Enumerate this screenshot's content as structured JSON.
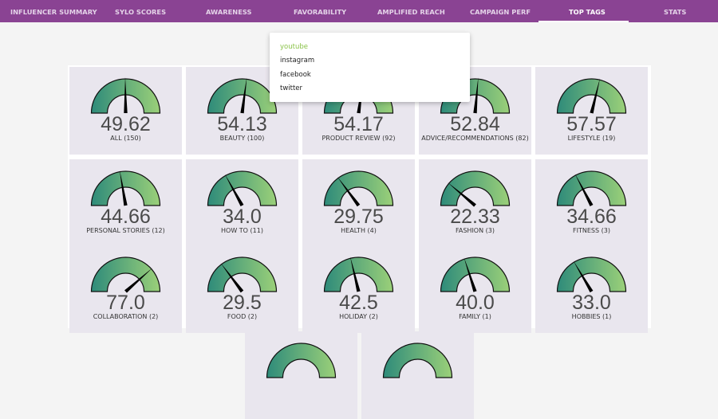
{
  "nav": {
    "tabs": [
      {
        "label": "INFLUENCER SUMMARY",
        "active": false
      },
      {
        "label": "SYLO SCORES",
        "active": false
      },
      {
        "label": "AWARENESS",
        "active": false
      },
      {
        "label": "FAVORABILITY",
        "active": false
      },
      {
        "label": "AMPLIFIED REACH",
        "active": false
      },
      {
        "label": "CAMPAIGN PERF",
        "active": false
      },
      {
        "label": "TOP TAGS",
        "active": true
      },
      {
        "label": "STATS",
        "active": false
      }
    ]
  },
  "dropdown": {
    "items": [
      {
        "label": "youtube",
        "active": true
      },
      {
        "label": "instagram",
        "active": false
      },
      {
        "label": "facebook",
        "active": false
      },
      {
        "label": "twitter",
        "active": false
      }
    ]
  },
  "gauges": [
    {
      "value": "49.62",
      "label": "ALL (150)"
    },
    {
      "value": "54.13",
      "label": "BEAUTY (100)"
    },
    {
      "value": "54.17",
      "label": "PRODUCT REVIEW (92)"
    },
    {
      "value": "52.84",
      "label": "ADVICE/RECOMMENDATIONS (82)"
    },
    {
      "value": "57.57",
      "label": "LIFESTYLE (19)"
    },
    {
      "value": "44.66",
      "label": "PERSONAL STORIES (12)"
    },
    {
      "value": "34.0",
      "label": "HOW TO (11)"
    },
    {
      "value": "29.75",
      "label": "HEALTH (4)"
    },
    {
      "value": "22.33",
      "label": "FASHION (3)"
    },
    {
      "value": "34.66",
      "label": "FITNESS (3)"
    },
    {
      "value": "77.0",
      "label": "COLLABORATION (2)"
    },
    {
      "value": "29.5",
      "label": "FOOD (2)"
    },
    {
      "value": "42.5",
      "label": "HOLIDAY (2)"
    },
    {
      "value": "40.0",
      "label": "FAMILY (1)"
    },
    {
      "value": "33.0",
      "label": "HOBBIES (1)"
    },
    {
      "value": "",
      "label": ""
    },
    {
      "value": "",
      "label": ""
    }
  ],
  "gauge_scale": {
    "min": 0,
    "max": 100
  },
  "colors": {
    "nav_bg": "#8a4393",
    "gauge_start": "#2e8b7a",
    "gauge_end": "#9bd079",
    "card_bg": "#e9e6ee",
    "dropdown_active": "#8bc34a"
  }
}
